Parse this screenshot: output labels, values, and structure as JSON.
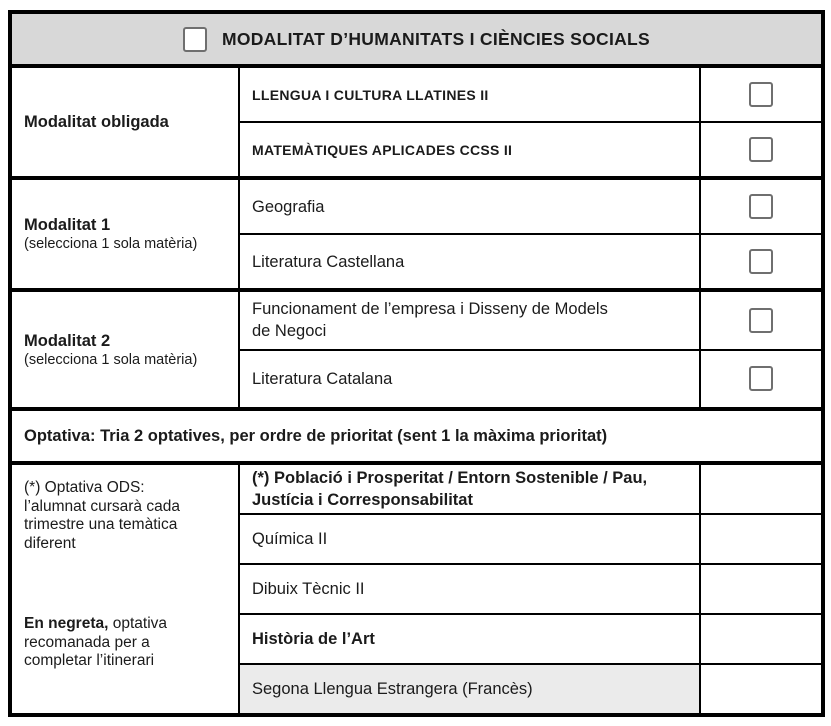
{
  "header": {
    "title": "MODALITAT D’HUMANITATS I CIÈNCIES SOCIALS",
    "checkbox_checked": false
  },
  "groups": [
    {
      "label": "Modalitat obligada",
      "sublabel": "",
      "subjects": [
        {
          "name": "LLENGUA I CULTURA LLATINES II",
          "bold": true,
          "checkbox_checked": false
        },
        {
          "name": "MATEMÀTIQUES APLICADES CCSS II",
          "bold": true,
          "checkbox_checked": false
        }
      ]
    },
    {
      "label": "Modalitat 1",
      "sublabel": "(selecciona 1 sola matèria)",
      "subjects": [
        {
          "name": "Geografia",
          "bold": false,
          "checkbox_checked": false
        },
        {
          "name": "Literatura Castellana",
          "bold": false,
          "checkbox_checked": false
        }
      ]
    },
    {
      "label": "Modalitat 2",
      "sublabel": "(selecciona 1 sola matèria)",
      "subjects": [
        {
          "name": "Funcionament de l’empresa i Disseny de Models de Negoci",
          "bold": false,
          "checkbox_checked": false
        },
        {
          "name": "Literatura Catalana",
          "bold": false,
          "checkbox_checked": false
        }
      ]
    }
  ],
  "optatives": {
    "header": "Optativa: Tria 2 optatives, per ordre de prioritat (sent 1 la màxima prioritat)",
    "side_note_ods": "(*) Optativa ODS: l’alumnat cursarà cada trimestre una temàtica diferent",
    "side_note_bold_lead": "En negreta,",
    "side_note_rest": " optativa recomanada per a completar l’itinerari",
    "items": [
      {
        "name": "(*) Població i Prosperitat / Entorn Sostenible / Pau, Justícia i Corresponsabilitat",
        "bold": true,
        "highlighted": false,
        "priority_value": ""
      },
      {
        "name": "Química II",
        "bold": false,
        "highlighted": false,
        "priority_value": ""
      },
      {
        "name": "Dibuix Tècnic II",
        "bold": false,
        "highlighted": false,
        "priority_value": ""
      },
      {
        "name": "Història de l’Art",
        "bold": true,
        "highlighted": false,
        "priority_value": ""
      },
      {
        "name": "Segona Llengua Estrangera (Francès)",
        "bold": false,
        "highlighted": true,
        "priority_value": ""
      }
    ]
  },
  "colors": {
    "header_bg": "#d8d8d8",
    "highlight_row_bg": "#ebebeb",
    "border": "#000000",
    "checkbox_border": "#6f6f6f",
    "text": "#1b1b1b"
  }
}
